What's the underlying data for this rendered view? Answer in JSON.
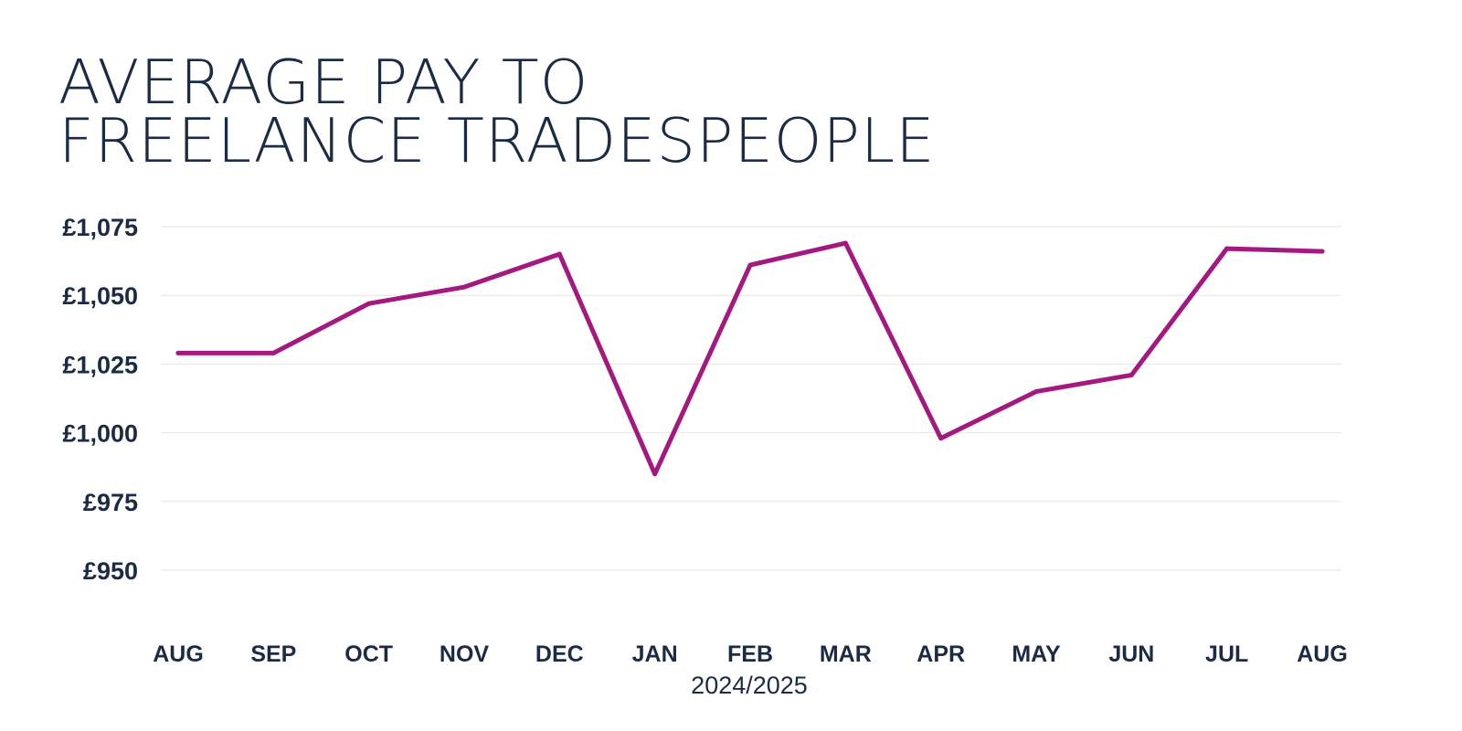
{
  "chart_data": {
    "type": "line",
    "title": "AVERAGE PAY TO\nFREELANCE TRADESPEOPLE",
    "xlabel": "2024/2025",
    "ylabel": "",
    "categories": [
      "AUG",
      "SEP",
      "OCT",
      "NOV",
      "DEC",
      "JAN",
      "FEB",
      "MAR",
      "APR",
      "MAY",
      "JUN",
      "JUL",
      "AUG"
    ],
    "series": [
      {
        "values": [
          1029,
          1029,
          1047,
          1053,
          1065,
          985,
          1061,
          1069,
          998,
          1015,
          1021,
          1067,
          1066
        ]
      }
    ],
    "ylim": [
      950,
      1075
    ],
    "yticks": [
      950,
      975,
      1000,
      1025,
      1050,
      1075
    ],
    "ytick_labels": [
      "£950",
      "£975",
      "£1,000",
      "£1,025",
      "£1,050",
      "£1,075"
    ],
    "grid": true,
    "legend": "none"
  },
  "colors": {
    "line": "#a3197f",
    "text": "#1b2b45",
    "grid": "#e6e6e6"
  }
}
